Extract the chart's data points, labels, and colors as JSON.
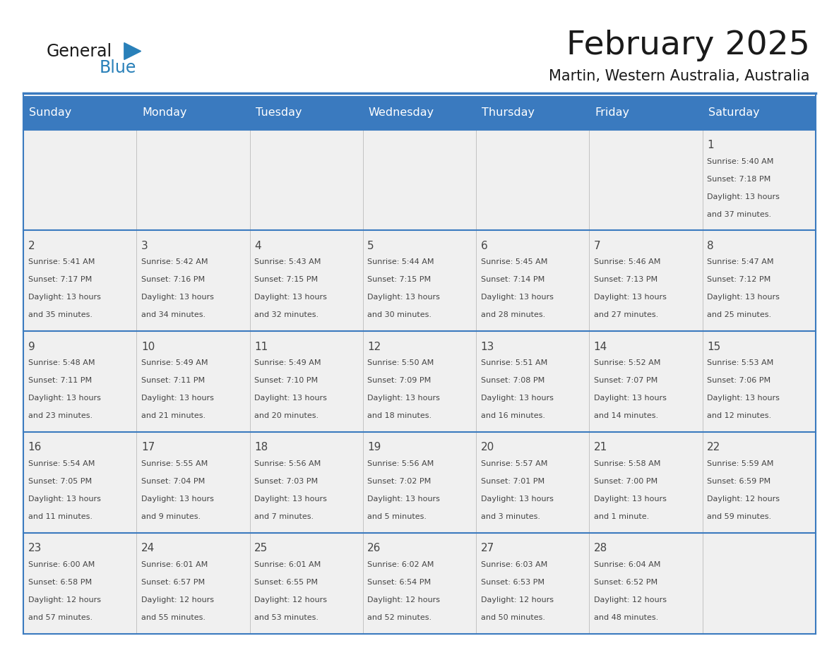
{
  "title": "February 2025",
  "subtitle": "Martin, Western Australia, Australia",
  "header_bg": "#3a7abf",
  "header_text_color": "#ffffff",
  "cell_bg_light": "#f0f0f0",
  "border_color": "#3a7abf",
  "text_color": "#444444",
  "day_headers": [
    "Sunday",
    "Monday",
    "Tuesday",
    "Wednesday",
    "Thursday",
    "Friday",
    "Saturday"
  ],
  "calendar_data": [
    [
      null,
      null,
      null,
      null,
      null,
      null,
      {
        "day": "1",
        "sunrise": "5:40 AM",
        "sunset": "7:18 PM",
        "daylight_l1": "13 hours",
        "daylight_l2": "and 37 minutes."
      }
    ],
    [
      {
        "day": "2",
        "sunrise": "5:41 AM",
        "sunset": "7:17 PM",
        "daylight_l1": "13 hours",
        "daylight_l2": "and 35 minutes."
      },
      {
        "day": "3",
        "sunrise": "5:42 AM",
        "sunset": "7:16 PM",
        "daylight_l1": "13 hours",
        "daylight_l2": "and 34 minutes."
      },
      {
        "day": "4",
        "sunrise": "5:43 AM",
        "sunset": "7:15 PM",
        "daylight_l1": "13 hours",
        "daylight_l2": "and 32 minutes."
      },
      {
        "day": "5",
        "sunrise": "5:44 AM",
        "sunset": "7:15 PM",
        "daylight_l1": "13 hours",
        "daylight_l2": "and 30 minutes."
      },
      {
        "day": "6",
        "sunrise": "5:45 AM",
        "sunset": "7:14 PM",
        "daylight_l1": "13 hours",
        "daylight_l2": "and 28 minutes."
      },
      {
        "day": "7",
        "sunrise": "5:46 AM",
        "sunset": "7:13 PM",
        "daylight_l1": "13 hours",
        "daylight_l2": "and 27 minutes."
      },
      {
        "day": "8",
        "sunrise": "5:47 AM",
        "sunset": "7:12 PM",
        "daylight_l1": "13 hours",
        "daylight_l2": "and 25 minutes."
      }
    ],
    [
      {
        "day": "9",
        "sunrise": "5:48 AM",
        "sunset": "7:11 PM",
        "daylight_l1": "13 hours",
        "daylight_l2": "and 23 minutes."
      },
      {
        "day": "10",
        "sunrise": "5:49 AM",
        "sunset": "7:11 PM",
        "daylight_l1": "13 hours",
        "daylight_l2": "and 21 minutes."
      },
      {
        "day": "11",
        "sunrise": "5:49 AM",
        "sunset": "7:10 PM",
        "daylight_l1": "13 hours",
        "daylight_l2": "and 20 minutes."
      },
      {
        "day": "12",
        "sunrise": "5:50 AM",
        "sunset": "7:09 PM",
        "daylight_l1": "13 hours",
        "daylight_l2": "and 18 minutes."
      },
      {
        "day": "13",
        "sunrise": "5:51 AM",
        "sunset": "7:08 PM",
        "daylight_l1": "13 hours",
        "daylight_l2": "and 16 minutes."
      },
      {
        "day": "14",
        "sunrise": "5:52 AM",
        "sunset": "7:07 PM",
        "daylight_l1": "13 hours",
        "daylight_l2": "and 14 minutes."
      },
      {
        "day": "15",
        "sunrise": "5:53 AM",
        "sunset": "7:06 PM",
        "daylight_l1": "13 hours",
        "daylight_l2": "and 12 minutes."
      }
    ],
    [
      {
        "day": "16",
        "sunrise": "5:54 AM",
        "sunset": "7:05 PM",
        "daylight_l1": "13 hours",
        "daylight_l2": "and 11 minutes."
      },
      {
        "day": "17",
        "sunrise": "5:55 AM",
        "sunset": "7:04 PM",
        "daylight_l1": "13 hours",
        "daylight_l2": "and 9 minutes."
      },
      {
        "day": "18",
        "sunrise": "5:56 AM",
        "sunset": "7:03 PM",
        "daylight_l1": "13 hours",
        "daylight_l2": "and 7 minutes."
      },
      {
        "day": "19",
        "sunrise": "5:56 AM",
        "sunset": "7:02 PM",
        "daylight_l1": "13 hours",
        "daylight_l2": "and 5 minutes."
      },
      {
        "day": "20",
        "sunrise": "5:57 AM",
        "sunset": "7:01 PM",
        "daylight_l1": "13 hours",
        "daylight_l2": "and 3 minutes."
      },
      {
        "day": "21",
        "sunrise": "5:58 AM",
        "sunset": "7:00 PM",
        "daylight_l1": "13 hours",
        "daylight_l2": "and 1 minute."
      },
      {
        "day": "22",
        "sunrise": "5:59 AM",
        "sunset": "6:59 PM",
        "daylight_l1": "12 hours",
        "daylight_l2": "and 59 minutes."
      }
    ],
    [
      {
        "day": "23",
        "sunrise": "6:00 AM",
        "sunset": "6:58 PM",
        "daylight_l1": "12 hours",
        "daylight_l2": "and 57 minutes."
      },
      {
        "day": "24",
        "sunrise": "6:01 AM",
        "sunset": "6:57 PM",
        "daylight_l1": "12 hours",
        "daylight_l2": "and 55 minutes."
      },
      {
        "day": "25",
        "sunrise": "6:01 AM",
        "sunset": "6:55 PM",
        "daylight_l1": "12 hours",
        "daylight_l2": "and 53 minutes."
      },
      {
        "day": "26",
        "sunrise": "6:02 AM",
        "sunset": "6:54 PM",
        "daylight_l1": "12 hours",
        "daylight_l2": "and 52 minutes."
      },
      {
        "day": "27",
        "sunrise": "6:03 AM",
        "sunset": "6:53 PM",
        "daylight_l1": "12 hours",
        "daylight_l2": "and 50 minutes."
      },
      {
        "day": "28",
        "sunrise": "6:04 AM",
        "sunset": "6:52 PM",
        "daylight_l1": "12 hours",
        "daylight_l2": "and 48 minutes."
      },
      null
    ]
  ],
  "logo_color_general": "#1a1a1a",
  "logo_color_blue": "#2980b9",
  "logo_triangle_color": "#2980b9"
}
